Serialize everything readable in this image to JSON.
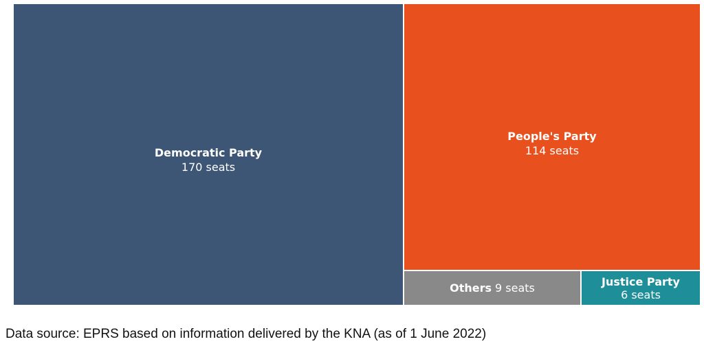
{
  "chart_data": {
    "type": "treemap",
    "title": "",
    "unit": "seats",
    "items": [
      {
        "name": "Democratic Party",
        "value": 170,
        "label": "170 seats",
        "color": "#3d5675"
      },
      {
        "name": "People's Party",
        "value": 114,
        "label": "114 seats",
        "color": "#e8501e"
      },
      {
        "name": "Others",
        "value": 9,
        "label": "9 seats",
        "color": "#898989"
      },
      {
        "name": "Justice Party",
        "value": 6,
        "label": "6 seats",
        "color": "#1e8e99"
      }
    ]
  },
  "caption": "Data source: EPRS based on information delivered by the KNA (as of 1 June 2022)"
}
